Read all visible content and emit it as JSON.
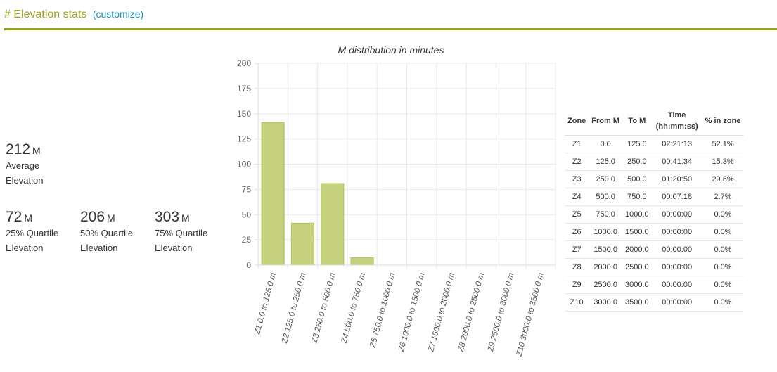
{
  "header": {
    "title": "# Elevation stats",
    "customize": "(customize)"
  },
  "stats": {
    "avg": {
      "value": "212",
      "unit": "M",
      "label1": "Average",
      "label2": "Elevation"
    },
    "q25": {
      "value": "72",
      "unit": "M",
      "label1": "25% Quartile",
      "label2": "Elevation"
    },
    "q50": {
      "value": "206",
      "unit": "M",
      "label1": "50% Quartile",
      "label2": "Elevation"
    },
    "q75": {
      "value": "303",
      "unit": "M",
      "label1": "75% Quartile",
      "label2": "Elevation"
    }
  },
  "chart_data": {
    "type": "bar",
    "title": "M distribution in minutes",
    "categories": [
      "Z1 0.0 to 125.0 m",
      "Z2 125.0 to 250.0 m",
      "Z3 250.0 to 500.0 m",
      "Z4 500.0 to 750.0 m",
      "Z5 750.0 to 1000.0 m",
      "Z6 1000.0 to 1500.0 m",
      "Z7 1500.0 to 2000.0 m",
      "Z8 2000.0 to 2500.0 m",
      "Z9 2500.0 to 3000.0 m",
      "Z10 3000.0 to 3500.0 m"
    ],
    "values": [
      141.2,
      41.6,
      80.8,
      7.3,
      0,
      0,
      0,
      0,
      0,
      0
    ],
    "ylim": [
      0,
      200
    ],
    "yticks": [
      0,
      25,
      50,
      75,
      100,
      125,
      150,
      175,
      200
    ],
    "grid": true,
    "bar_color": "#c5d17d",
    "bar_stroke": "#b3c25e"
  },
  "table": {
    "headers": [
      "Zone",
      "From M",
      "To M",
      "Time (hh:mm:ss)",
      "% in zone"
    ],
    "rows": [
      [
        "Z1",
        "0.0",
        "125.0",
        "02:21:13",
        "52.1%"
      ],
      [
        "Z2",
        "125.0",
        "250.0",
        "00:41:34",
        "15.3%"
      ],
      [
        "Z3",
        "250.0",
        "500.0",
        "01:20:50",
        "29.8%"
      ],
      [
        "Z4",
        "500.0",
        "750.0",
        "00:07:18",
        "2.7%"
      ],
      [
        "Z5",
        "750.0",
        "1000.0",
        "00:00:00",
        "0.0%"
      ],
      [
        "Z6",
        "1000.0",
        "1500.0",
        "00:00:00",
        "0.0%"
      ],
      [
        "Z7",
        "1500.0",
        "2000.0",
        "00:00:00",
        "0.0%"
      ],
      [
        "Z8",
        "2000.0",
        "2500.0",
        "00:00:00",
        "0.0%"
      ],
      [
        "Z9",
        "2500.0",
        "3000.0",
        "00:00:00",
        "0.0%"
      ],
      [
        "Z10",
        "3000.0",
        "3500.0",
        "00:00:00",
        "0.0%"
      ]
    ]
  }
}
